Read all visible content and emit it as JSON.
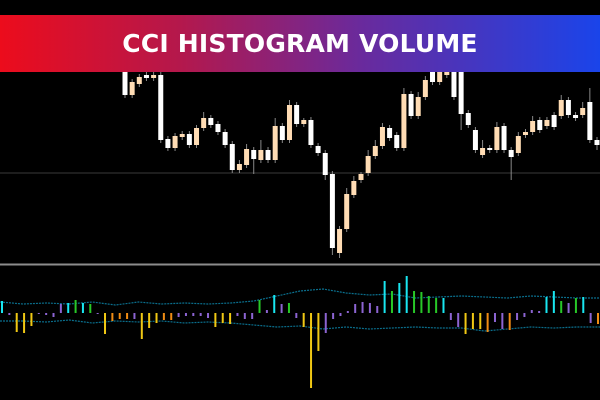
{
  "banner": {
    "title": "CCI HISTOGRAM VOLUME",
    "gradient": [
      "#ec0c1c",
      "#1a44ea"
    ]
  },
  "colors": {
    "bull": "#ffdcb4",
    "bear": "#ffffff",
    "wick": "#888888",
    "cyan": "#19e6f0",
    "green": "#28c828",
    "purple": "#8c64d2",
    "yellow": "#f0c814",
    "orange": "#f08c14",
    "band": "#0a6e8c",
    "separator": "#8c8c8c",
    "level": "#3a3a3a"
  },
  "chart_data": [
    {
      "type": "candlestick",
      "title": "",
      "candles": [
        [
          228,
          231,
          202,
          205
        ],
        [
          205,
          221,
          202,
          218
        ],
        [
          216,
          226,
          213,
          223
        ],
        [
          225,
          228,
          219,
          222
        ],
        [
          222,
          228,
          219,
          225
        ],
        [
          225,
          228,
          157,
          160
        ],
        [
          161,
          164,
          149,
          152
        ],
        [
          152,
          167,
          149,
          164
        ],
        [
          163,
          169,
          160,
          166
        ],
        [
          166,
          169,
          152,
          155
        ],
        [
          155,
          175,
          152,
          172
        ],
        [
          172,
          188,
          169,
          182
        ],
        [
          182,
          185,
          172,
          175
        ],
        [
          176,
          179,
          165,
          168
        ],
        [
          168,
          171,
          152,
          155
        ],
        [
          156,
          159,
          127,
          130
        ],
        [
          130,
          140,
          127,
          136
        ],
        [
          135,
          156,
          132,
          151
        ],
        [
          150,
          153,
          126,
          141
        ],
        [
          140,
          160,
          137,
          150
        ],
        [
          150,
          153,
          137,
          140
        ],
        [
          140,
          182,
          137,
          174
        ],
        [
          174,
          177,
          157,
          160
        ],
        [
          160,
          200,
          157,
          195
        ],
        [
          195,
          198,
          173,
          176
        ],
        [
          176,
          182,
          173,
          180
        ],
        [
          180,
          183,
          152,
          155
        ],
        [
          154,
          157,
          144,
          147
        ],
        [
          147,
          150,
          120,
          125
        ],
        [
          126,
          129,
          45,
          52
        ],
        [
          47,
          74,
          42,
          71
        ],
        [
          71,
          112,
          68,
          106
        ],
        [
          105,
          124,
          102,
          119
        ],
        [
          120,
          128,
          117,
          126
        ],
        [
          127,
          150,
          124,
          144
        ],
        [
          144,
          160,
          141,
          154
        ],
        [
          154,
          177,
          151,
          173
        ],
        [
          172,
          175,
          159,
          162
        ],
        [
          165,
          168,
          149,
          152
        ],
        [
          152,
          212,
          149,
          206
        ],
        [
          206,
          209,
          181,
          184
        ],
        [
          184,
          208,
          181,
          203
        ],
        [
          203,
          224,
          200,
          220
        ],
        [
          228,
          231,
          215,
          218
        ],
        [
          218,
          232,
          215,
          228
        ],
        [
          225,
          234,
          222,
          230
        ],
        [
          235,
          240,
          200,
          203
        ],
        [
          240,
          243,
          170,
          186
        ],
        [
          187,
          190,
          172,
          175
        ],
        [
          170,
          173,
          147,
          150
        ],
        [
          145,
          160,
          142,
          152
        ],
        [
          152,
          155,
          147,
          150
        ],
        [
          150,
          178,
          147,
          173
        ],
        [
          174,
          177,
          147,
          150
        ],
        [
          150,
          153,
          120,
          143
        ],
        [
          147,
          168,
          144,
          164
        ],
        [
          165,
          171,
          162,
          168
        ],
        [
          168,
          184,
          165,
          179
        ],
        [
          180,
          183,
          167,
          170
        ],
        [
          174,
          183,
          171,
          180
        ],
        [
          185,
          188,
          170,
          173
        ],
        [
          184,
          205,
          181,
          200
        ],
        [
          200,
          203,
          182,
          185
        ],
        [
          185,
          188,
          179,
          182
        ],
        [
          185,
          198,
          182,
          192
        ],
        [
          198,
          212,
          157,
          160
        ],
        [
          160,
          163,
          150,
          155
        ]
      ]
    },
    {
      "type": "bar",
      "title": "",
      "values": [
        12,
        -2,
        -19,
        -20,
        -13,
        -1,
        -2,
        -4,
        9,
        10,
        13,
        10,
        9,
        -1,
        -21,
        -8,
        -6,
        -6,
        -6,
        -26,
        -15,
        -10,
        -7,
        -7,
        -4,
        -3,
        -3,
        -3,
        -5,
        -14,
        -10,
        -11,
        -3,
        -6,
        -6,
        13,
        3,
        18,
        9,
        10,
        -5,
        -14,
        -75,
        -38,
        -20,
        -6,
        -3,
        2,
        9,
        11,
        10,
        7,
        32,
        22,
        30,
        37,
        22,
        21,
        17,
        15,
        15,
        -7,
        -14,
        -21,
        -16,
        -16,
        -19,
        -9,
        -16,
        -17,
        -7,
        -4,
        3,
        2,
        16,
        22,
        12,
        10,
        15,
        16,
        -10,
        -11
      ],
      "bar_colors": [
        "cyan",
        "purple",
        "yellow",
        "yellow",
        "yellow",
        "purple",
        "purple",
        "purple",
        "purple",
        "cyan",
        "green",
        "cyan",
        "green",
        "purple",
        "yellow",
        "orange",
        "orange",
        "orange",
        "purple",
        "yellow",
        "yellow",
        "yellow",
        "orange",
        "orange",
        "purple",
        "purple",
        "purple",
        "purple",
        "purple",
        "yellow",
        "yellow",
        "yellow",
        "purple",
        "purple",
        "purple",
        "green",
        "purple",
        "cyan",
        "purple",
        "green",
        "purple",
        "yellow",
        "yellow",
        "yellow",
        "purple",
        "purple",
        "purple",
        "purple",
        "purple",
        "purple",
        "purple",
        "purple",
        "cyan",
        "green",
        "cyan",
        "cyan",
        "green",
        "green",
        "green",
        "green",
        "cyan",
        "purple",
        "purple",
        "yellow",
        "yellow",
        "yellow",
        "orange",
        "purple",
        "purple",
        "orange",
        "purple",
        "purple",
        "purple",
        "purple",
        "cyan",
        "cyan",
        "green",
        "purple",
        "green",
        "cyan",
        "purple",
        "orange"
      ],
      "upper_band": [
        11,
        9,
        10,
        9,
        11,
        8,
        11,
        9,
        10,
        9,
        10,
        12,
        17,
        22,
        24,
        20,
        18,
        19,
        15,
        16,
        17,
        16,
        15,
        17,
        16,
        15,
        15
      ],
      "lower_band": [
        -8,
        -8,
        -9,
        -7,
        -10,
        -8,
        -9,
        -8,
        -10,
        -9,
        -10,
        -12,
        -14,
        -13,
        -16,
        -14,
        -16,
        -15,
        -14,
        -15,
        -15,
        -18,
        -16,
        -14,
        -15,
        -14,
        -14
      ]
    }
  ]
}
